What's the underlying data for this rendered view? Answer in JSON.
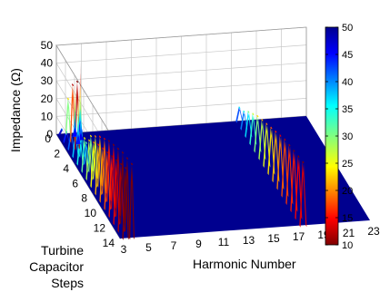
{
  "chart_data": {
    "type": "surface-3d",
    "title": "",
    "xlabel": "Harmonic Number",
    "ylabel_lines": [
      "Turbine",
      "Capacitor",
      "Steps"
    ],
    "zlabel": "Impedance (Ω)",
    "x_ticks": [
      "3",
      "5",
      "7",
      "9",
      "11",
      "13",
      "15",
      "17",
      "19",
      "21",
      "23"
    ],
    "y_ticks": [
      "0",
      "2",
      "4",
      "6",
      "8",
      "10",
      "12",
      "14"
    ],
    "z_ticks": [
      "0",
      "10",
      "20",
      "30",
      "40",
      "50"
    ],
    "z_direction": "reversed",
    "xlim": [
      3,
      23
    ],
    "ylim": [
      0,
      14
    ],
    "zlim": [
      0,
      50
    ],
    "grid": true,
    "colorbar": {
      "range": [
        10,
        50
      ],
      "ticks": [
        "50",
        "45",
        "40",
        "35",
        "30",
        "25",
        "20",
        "15",
        "10"
      ],
      "colormap": "jet",
      "top_color": "#00008f",
      "bottom_color": "#800000",
      "placement": "right"
    },
    "base_color": "#00008f",
    "ridges": [
      {
        "name": "",
        "harmonic_center": 3.4,
        "width": 0.45,
        "peak_step": 3.0,
        "profile": [
          47,
          44,
          41,
          37,
          34,
          31,
          28,
          25,
          22,
          20,
          18,
          16,
          14,
          12,
          10
        ]
      },
      {
        "name": "",
        "harmonic_center": 3.9,
        "width": 0.35,
        "peak_step": 2.0,
        "profile": [
          30,
          18,
          12,
          36,
          38,
          30,
          26,
          22,
          19,
          16,
          14,
          12,
          10,
          9,
          8
        ]
      },
      {
        "name": "",
        "harmonic_center": 17.6,
        "width": 0.5,
        "peak_step": 1.0,
        "profile": [
          42,
          40,
          36,
          33,
          30,
          28,
          26,
          24,
          22,
          20,
          18,
          17,
          16,
          15,
          14
        ]
      }
    ],
    "spikes": [
      {
        "harmonic": 4.9,
        "step": 0.0,
        "value": 10
      },
      {
        "harmonic": 4.3,
        "step": 0.5,
        "value": 19
      },
      {
        "harmonic": 4.6,
        "step": 1.0,
        "value": 24
      },
      {
        "harmonic": 4.2,
        "step": 1.5,
        "value": 15
      }
    ]
  }
}
